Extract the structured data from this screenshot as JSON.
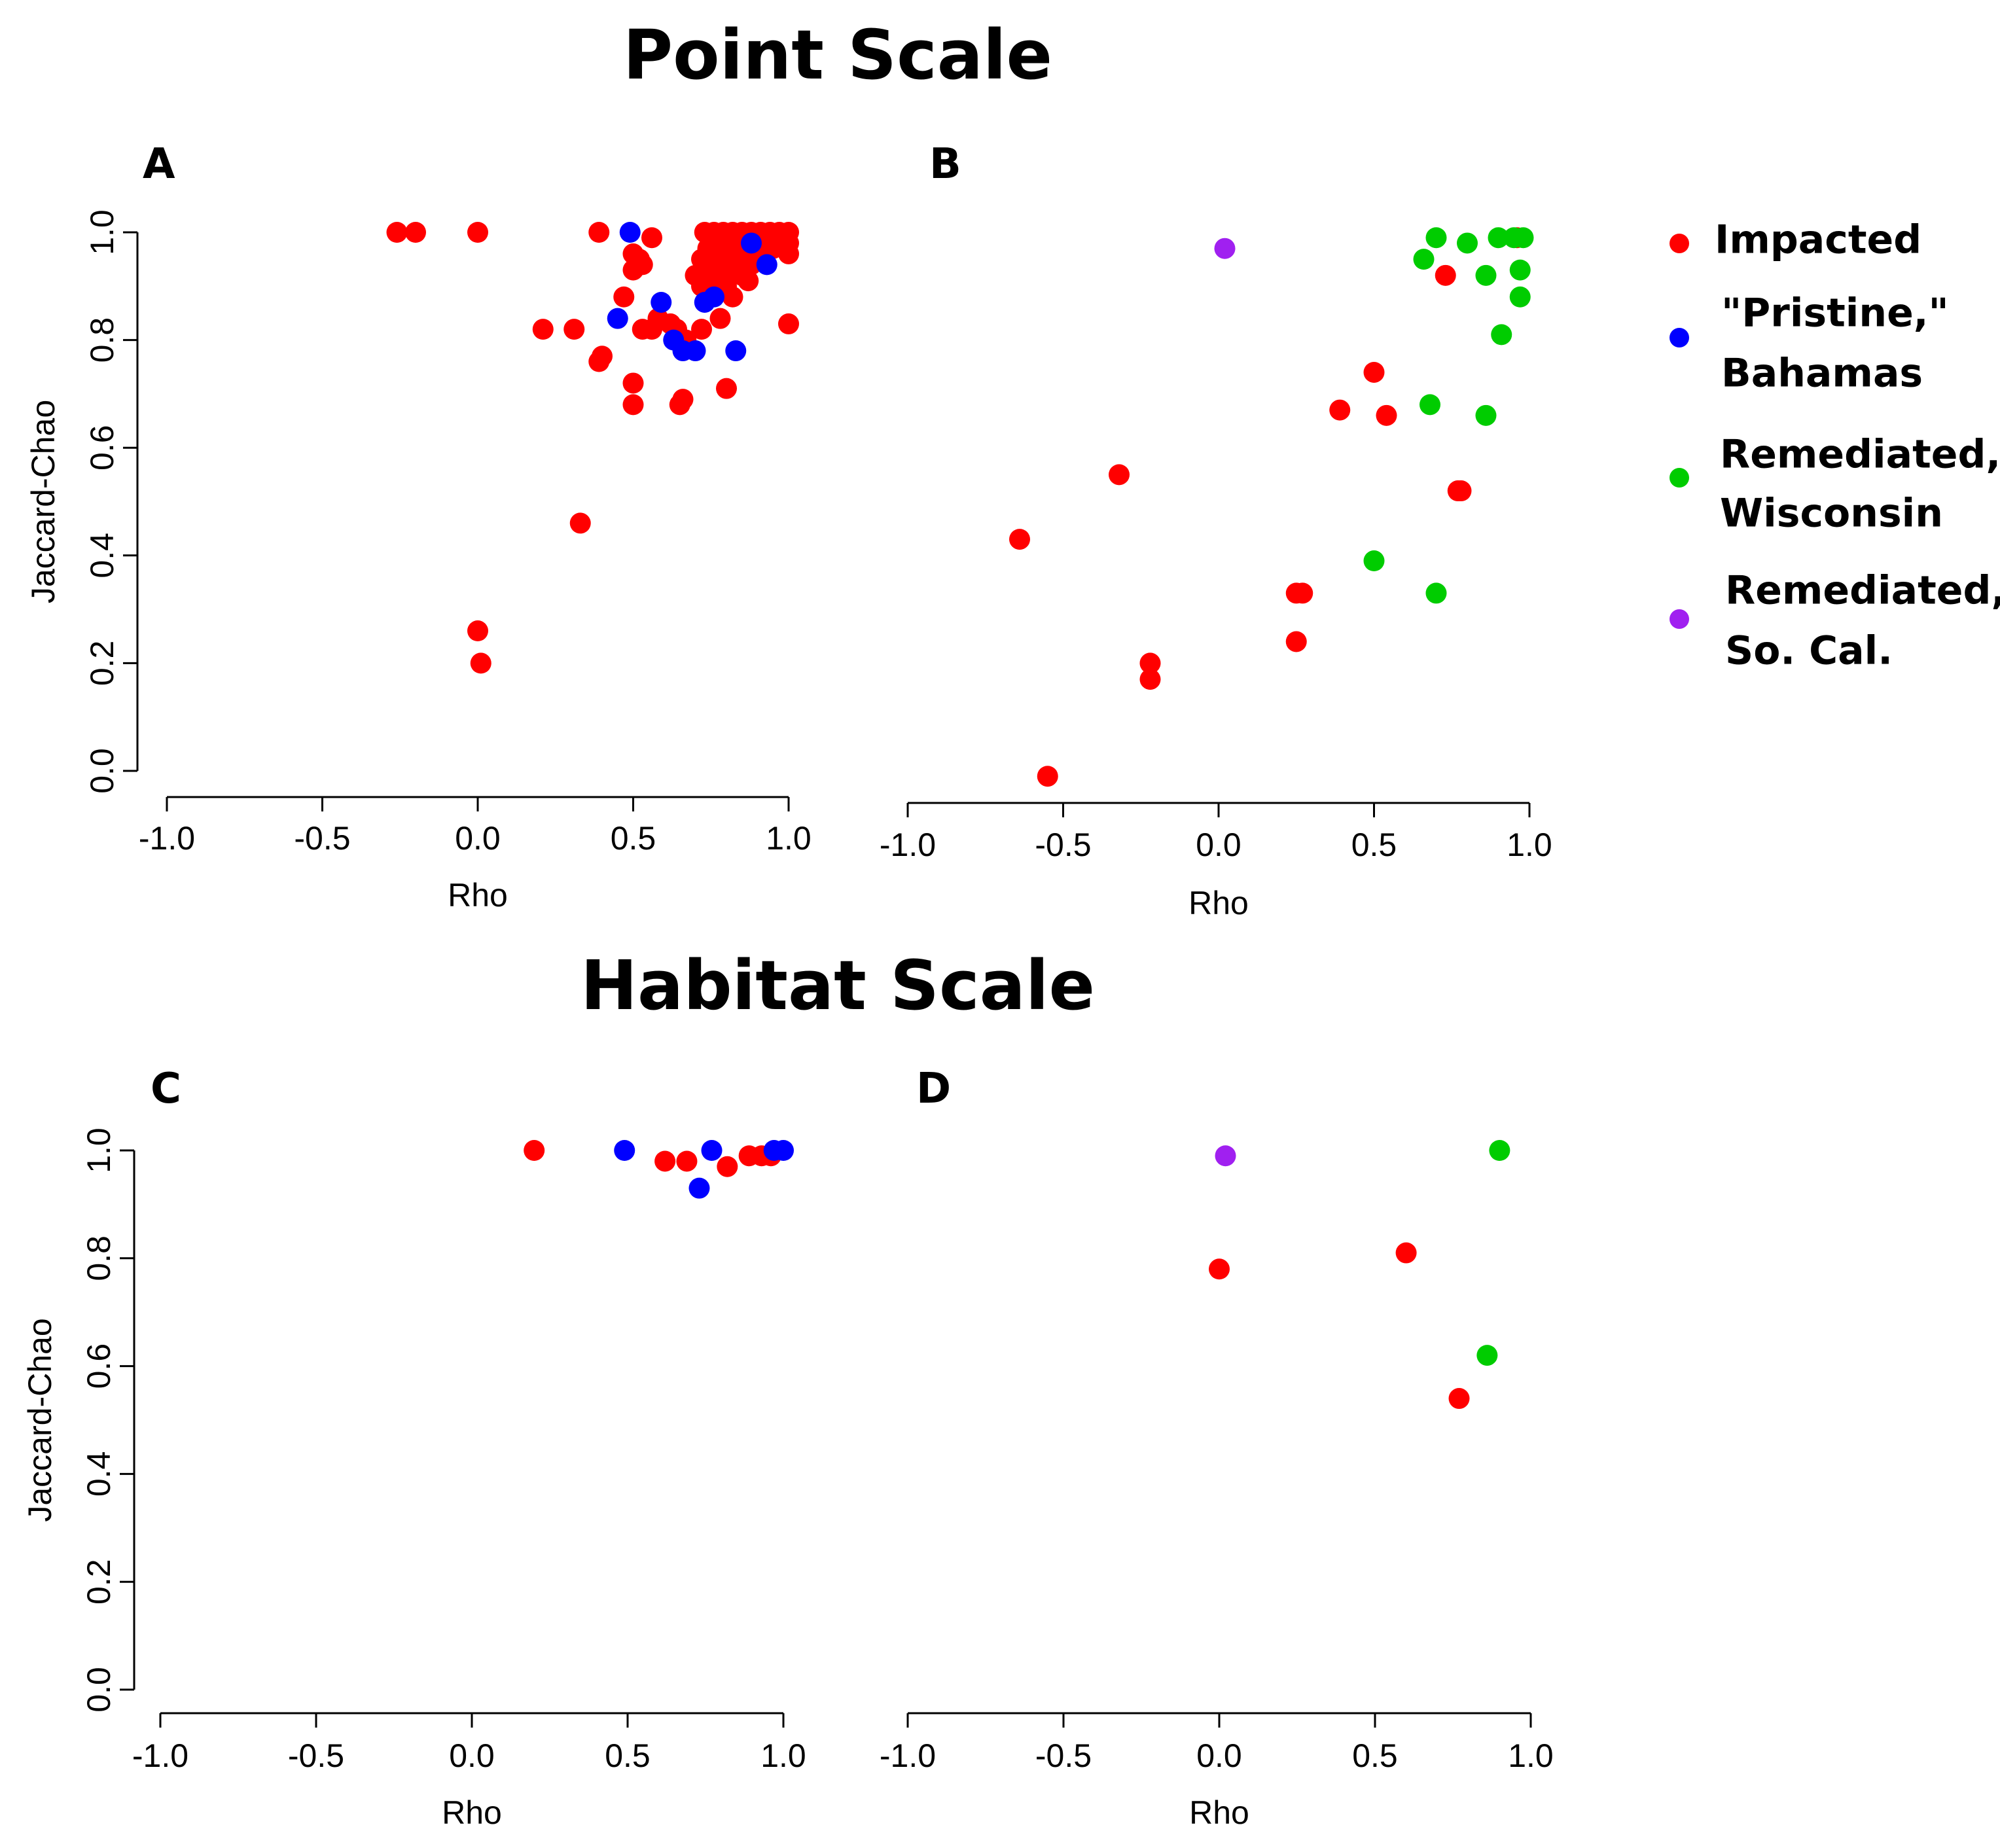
{
  "titles": {
    "top": "Point Scale",
    "bottom": "Habitat Scale"
  },
  "legend": [
    {
      "key": "impacted",
      "lines": [
        "Impacted"
      ],
      "color": "#ff0000"
    },
    {
      "key": "pristine",
      "lines": [
        "\"Pristine,\"",
        "Bahamas"
      ],
      "color": "#0000ff"
    },
    {
      "key": "wisconsin",
      "lines": [
        "Remediated,",
        "Wisconsin"
      ],
      "color": "#00cc00"
    },
    {
      "key": "socal",
      "lines": [
        "Remediated,",
        "So. Cal."
      ],
      "color": "#a020f0"
    }
  ],
  "chart_data": [
    {
      "panel": "A",
      "type": "scatter",
      "xlabel": "Rho",
      "ylabel": "Jaccard-Chao",
      "xlim": [
        -1.0,
        1.0
      ],
      "ylim": [
        0.0,
        1.0
      ],
      "xticks": [
        "-1.0",
        "-0.5",
        "0.0",
        "0.5",
        "1.0"
      ],
      "yticks": [
        "0.0",
        "0.2",
        "0.4",
        "0.6",
        "0.8",
        "1.0"
      ],
      "series": [
        {
          "key": "impacted",
          "points": [
            [
              -0.26,
              1.0
            ],
            [
              -0.2,
              1.0
            ],
            [
              0.0,
              1.0
            ],
            [
              0.39,
              1.0
            ],
            [
              0.56,
              0.99
            ],
            [
              0.5,
              0.96
            ],
            [
              0.52,
              0.95
            ],
            [
              0.53,
              0.94
            ],
            [
              0.5,
              0.93
            ],
            [
              0.47,
              0.88
            ],
            [
              0.21,
              0.82
            ],
            [
              0.31,
              0.82
            ],
            [
              0.53,
              0.82
            ],
            [
              0.56,
              0.82
            ],
            [
              0.58,
              0.84
            ],
            [
              0.62,
              0.83
            ],
            [
              0.64,
              0.82
            ],
            [
              0.67,
              0.8
            ],
            [
              0.72,
              0.82
            ],
            [
              0.78,
              0.84
            ],
            [
              0.39,
              0.76
            ],
            [
              0.4,
              0.77
            ],
            [
              0.5,
              0.72
            ],
            [
              0.5,
              0.68
            ],
            [
              0.65,
              0.68
            ],
            [
              0.66,
              0.69
            ],
            [
              0.8,
              0.71
            ],
            [
              0.33,
              0.46
            ],
            [
              0.0,
              0.26
            ],
            [
              0.01,
              0.2
            ],
            [
              1.0,
              0.83
            ],
            [
              0.7,
              0.92
            ],
            [
              0.72,
              0.9
            ],
            [
              0.75,
              0.93
            ],
            [
              0.78,
              0.95
            ],
            [
              0.8,
              0.9
            ],
            [
              0.82,
              0.88
            ],
            [
              0.85,
              0.92
            ],
            [
              0.88,
              0.94
            ],
            [
              0.9,
              0.95
            ],
            [
              0.92,
              0.96
            ],
            [
              0.95,
              0.97
            ],
            [
              0.98,
              0.99
            ],
            [
              1.0,
              0.98
            ],
            [
              1.0,
              1.0
            ],
            [
              0.73,
              1.0
            ],
            [
              0.76,
              1.0
            ],
            [
              0.79,
              1.0
            ],
            [
              0.82,
              1.0
            ],
            [
              0.85,
              1.0
            ],
            [
              0.88,
              1.0
            ],
            [
              0.91,
              1.0
            ],
            [
              0.94,
              1.0
            ],
            [
              0.97,
              1.0
            ],
            [
              0.74,
              0.97
            ],
            [
              0.77,
              0.98
            ],
            [
              0.8,
              0.97
            ],
            [
              0.83,
              0.98
            ],
            [
              0.86,
              0.97
            ],
            [
              0.9,
              0.98
            ],
            [
              0.93,
              0.99
            ],
            [
              0.96,
              0.98
            ],
            [
              1.0,
              0.96
            ],
            [
              0.72,
              0.95
            ],
            [
              0.75,
              0.92
            ],
            [
              0.78,
              0.91
            ],
            [
              0.81,
              0.93
            ],
            [
              0.84,
              0.95
            ],
            [
              0.87,
              0.91
            ]
          ]
        },
        {
          "key": "pristine",
          "points": [
            [
              0.49,
              1.0
            ],
            [
              0.45,
              0.84
            ],
            [
              0.59,
              0.87
            ],
            [
              0.63,
              0.8
            ],
            [
              0.66,
              0.78
            ],
            [
              0.7,
              0.78
            ],
            [
              0.73,
              0.87
            ],
            [
              0.83,
              0.78
            ],
            [
              0.93,
              0.94
            ],
            [
              0.88,
              0.98
            ],
            [
              0.76,
              0.88
            ]
          ]
        }
      ]
    },
    {
      "panel": "B",
      "type": "scatter",
      "xlabel": "Rho",
      "ylabel": "",
      "xlim": [
        -1.0,
        1.0
      ],
      "ylim": [
        0.0,
        1.0
      ],
      "xticks": [
        "-1.0",
        "-0.5",
        "0.0",
        "0.5",
        "1.0"
      ],
      "series": [
        {
          "key": "impacted",
          "points": [
            [
              0.96,
              0.99
            ],
            [
              0.73,
              0.92
            ],
            [
              0.5,
              0.74
            ],
            [
              0.39,
              0.67
            ],
            [
              0.54,
              0.66
            ],
            [
              -0.32,
              0.55
            ],
            [
              0.77,
              0.52
            ],
            [
              0.78,
              0.52
            ],
            [
              -0.64,
              0.43
            ],
            [
              0.25,
              0.33
            ],
            [
              0.27,
              0.33
            ],
            [
              0.25,
              0.24
            ],
            [
              -0.22,
              0.2
            ],
            [
              -0.22,
              0.17
            ],
            [
              -0.55,
              -0.01
            ]
          ]
        },
        {
          "key": "wisconsin",
          "points": [
            [
              0.7,
              0.99
            ],
            [
              0.8,
              0.98
            ],
            [
              0.9,
              0.99
            ],
            [
              0.95,
              0.99
            ],
            [
              0.98,
              0.99
            ],
            [
              0.66,
              0.95
            ],
            [
              0.86,
              0.92
            ],
            [
              0.97,
              0.93
            ],
            [
              0.97,
              0.88
            ],
            [
              0.91,
              0.81
            ],
            [
              0.68,
              0.68
            ],
            [
              0.86,
              0.66
            ],
            [
              0.5,
              0.39
            ],
            [
              0.7,
              0.33
            ]
          ]
        },
        {
          "key": "socal",
          "points": [
            [
              0.02,
              0.97
            ]
          ]
        }
      ]
    },
    {
      "panel": "C",
      "type": "scatter",
      "xlabel": "Rho",
      "ylabel": "Jaccard-Chao",
      "xlim": [
        -1.0,
        1.0
      ],
      "ylim": [
        0.0,
        1.0
      ],
      "xticks": [
        "-1.0",
        "-0.5",
        "0.0",
        "0.5",
        "1.0"
      ],
      "yticks": [
        "0.0",
        "0.2",
        "0.4",
        "0.6",
        "0.8",
        "1.0"
      ],
      "series": [
        {
          "key": "impacted",
          "points": [
            [
              0.2,
              1.0
            ],
            [
              0.62,
              0.98
            ],
            [
              0.69,
              0.98
            ],
            [
              0.82,
              0.97
            ],
            [
              0.89,
              0.99
            ],
            [
              0.93,
              0.99
            ],
            [
              0.96,
              0.99
            ]
          ]
        },
        {
          "key": "pristine",
          "points": [
            [
              0.49,
              1.0
            ],
            [
              0.77,
              1.0
            ],
            [
              0.73,
              0.93
            ],
            [
              0.97,
              1.0
            ],
            [
              1.0,
              1.0
            ]
          ]
        }
      ]
    },
    {
      "panel": "D",
      "type": "scatter",
      "xlabel": "Rho",
      "ylabel": "",
      "xlim": [
        -1.0,
        1.0
      ],
      "ylim": [
        0.0,
        1.0
      ],
      "xticks": [
        "-1.0",
        "-0.5",
        "0.0",
        "0.5",
        "1.0"
      ],
      "series": [
        {
          "key": "impacted",
          "points": [
            [
              0.0,
              0.78
            ],
            [
              0.6,
              0.81
            ],
            [
              0.77,
              0.54
            ]
          ]
        },
        {
          "key": "wisconsin",
          "points": [
            [
              0.9,
              1.0
            ],
            [
              0.86,
              0.62
            ]
          ]
        },
        {
          "key": "socal",
          "points": [
            [
              0.02,
              0.99
            ]
          ]
        }
      ]
    }
  ]
}
